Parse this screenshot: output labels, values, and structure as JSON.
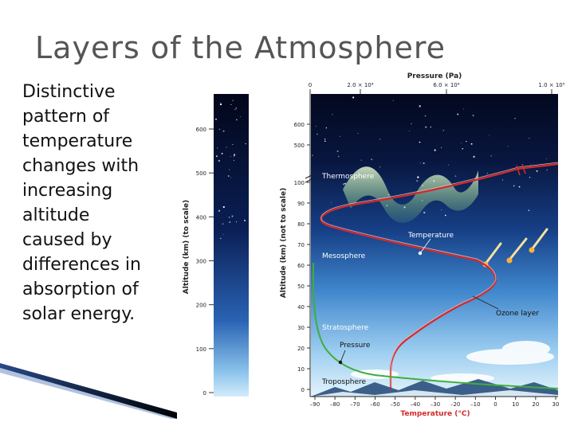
{
  "slide": {
    "title": "Layers of the Atmosphere",
    "body_lines": [
      "Distinctive",
      "pattern of",
      "temperature",
      "changes with",
      "increasing",
      "altitude",
      "caused by",
      "differences in",
      "absorption of",
      "solar energy."
    ]
  },
  "left_column": {
    "axis_title": "Altitude (km) (to scale)",
    "ticks": [
      {
        "label": "0",
        "value": 0
      },
      {
        "label": "100",
        "value": 100
      },
      {
        "label": "200",
        "value": 200
      },
      {
        "label": "300",
        "value": 300
      },
      {
        "label": "400",
        "value": 400
      },
      {
        "label": "500",
        "value": 500
      },
      {
        "label": "600",
        "value": 600
      }
    ]
  },
  "main_chart": {
    "left_axis_title": "Altitude (km) (not to scale)",
    "left_ticks": [
      "0",
      "10",
      "20",
      "30",
      "40",
      "50",
      "60",
      "70",
      "80",
      "90",
      "100",
      "500",
      "600"
    ],
    "top_axis_title": "Pressure (Pa)",
    "top_ticks": [
      "0",
      "2.0 × 10⁴",
      "6.0 × 10⁴",
      "1.0 × 10⁵"
    ],
    "bottom_axis_title": "Temperature (°C)",
    "bottom_ticks": [
      "–90",
      "–80",
      "–70",
      "–60",
      "–50",
      "–40",
      "–30",
      "–20",
      "–10",
      "0",
      "10",
      "20",
      "30"
    ],
    "layers": {
      "thermosphere": "Thermosphere",
      "mesosphere": "Mesosphere",
      "stratosphere": "Stratosphere",
      "troposphere": "Troposphere"
    },
    "annotations": {
      "temperature": "Temperature",
      "ozone": "Ozone layer",
      "pressure": "Pressure"
    },
    "colors": {
      "temperature_curve": "#d42a2a",
      "pressure_curve": "#3fae3a",
      "sky_top": "#03081e",
      "sky_bottom": "#bfe0f3"
    }
  }
}
